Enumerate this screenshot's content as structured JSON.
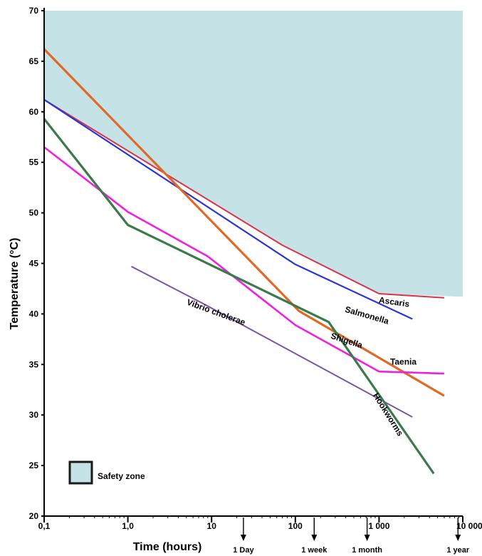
{
  "chart_data": {
    "type": "line",
    "xlabel": "Time (hours)",
    "ylabel": "Temperature (°C)",
    "xscale": "log",
    "xlim": [
      0.1,
      10000
    ],
    "ylim": [
      20,
      70
    ],
    "x_ticks": [
      {
        "value": 0.1,
        "label": "0,1"
      },
      {
        "value": 1,
        "label": "1,0"
      },
      {
        "value": 10,
        "label": "10"
      },
      {
        "value": 100,
        "label": "100"
      },
      {
        "value": 1000,
        "label": "1 000"
      },
      {
        "value": 10000,
        "label": "10 000"
      }
    ],
    "y_ticks": [
      20,
      25,
      30,
      35,
      40,
      45,
      50,
      55,
      60,
      65,
      70
    ],
    "time_markers": [
      {
        "x": 24,
        "label": "1 Day"
      },
      {
        "x": 168,
        "label": "1 week"
      },
      {
        "x": 720,
        "label": "1 month"
      },
      {
        "x": 8760,
        "label": "1 year"
      }
    ],
    "safety_zone": {
      "label": "Safety zone",
      "color": "#c5e2e6",
      "boundary": [
        [
          0.1,
          61.2
        ],
        [
          70,
          46.8
        ],
        [
          1000,
          42.0
        ],
        [
          10000,
          41.7
        ]
      ]
    },
    "series": [
      {
        "name": "Ascaris",
        "color": "#d9334a",
        "points": [
          [
            0.1,
            61.2
          ],
          [
            70,
            46.8
          ],
          [
            1000,
            42.0
          ],
          [
            6000,
            41.6
          ]
        ]
      },
      {
        "name": "Salmonella",
        "color": "#2a35d8",
        "points": [
          [
            0.1,
            61.2
          ],
          [
            100,
            44.9
          ],
          [
            2500,
            39.5
          ]
        ]
      },
      {
        "name": "Shigella",
        "color": "#e06a25",
        "points": [
          [
            0.1,
            66.2
          ],
          [
            110,
            40.3
          ],
          [
            6000,
            31.9
          ]
        ]
      },
      {
        "name": "Taenia",
        "color": "#ee22dd",
        "points": [
          [
            0.1,
            56.5
          ],
          [
            1,
            50.1
          ],
          [
            9,
            45.7
          ],
          [
            100,
            38.9
          ],
          [
            1000,
            34.3
          ],
          [
            6000,
            34.1
          ]
        ]
      },
      {
        "name": "Vibrio cholerae",
        "color": "#7a55a8",
        "points": [
          [
            1.1,
            44.7
          ],
          [
            8,
            41.0
          ],
          [
            2500,
            29.8
          ]
        ]
      },
      {
        "name": "Hookworms",
        "color": "#3c7a4c",
        "points": [
          [
            0.1,
            59.3
          ],
          [
            1,
            48.8
          ],
          [
            250,
            39.2
          ],
          [
            4500,
            24.2
          ]
        ]
      }
    ],
    "series_labels": [
      {
        "series": "Ascaris",
        "text": "Ascaris",
        "x": 1500,
        "y": 40.9,
        "rotate": 8
      },
      {
        "series": "Salmonella",
        "text": "Salmonella",
        "x": 700,
        "y": 39.6,
        "rotate": 16
      },
      {
        "series": "Shigella",
        "text": "Shigella",
        "x": 400,
        "y": 37.1,
        "rotate": 18
      },
      {
        "series": "Taenia",
        "text": "Taenia",
        "x": 1950,
        "y": 35.0,
        "rotate": 0
      },
      {
        "series": "Vibrio cholerae",
        "text": "Vibrio cholerae",
        "x": 11,
        "y": 39.9,
        "rotate": 20
      },
      {
        "series": "Hookworms",
        "text": "Hookworms",
        "x": 1200,
        "y": 29.9,
        "rotate": 58
      }
    ]
  }
}
